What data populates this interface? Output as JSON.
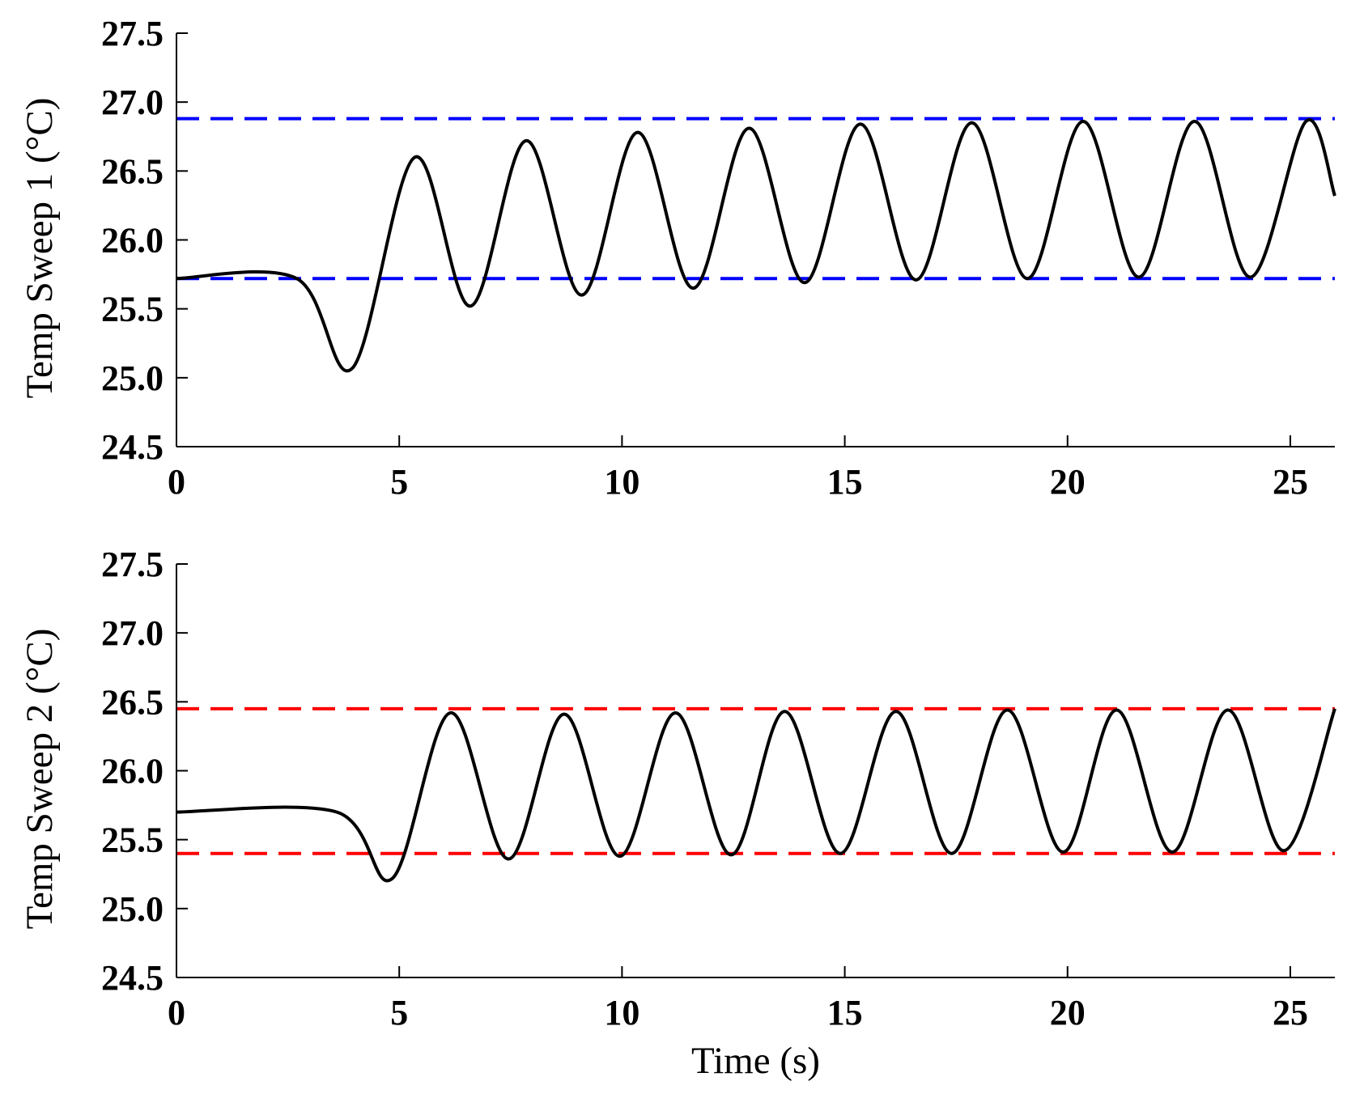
{
  "chart_data": [
    {
      "type": "line",
      "y_label": "Temp Sweep 1 (°C)",
      "x": [
        0,
        2.7,
        3.95,
        5.35,
        6.6,
        7.85,
        9.1,
        10.35,
        11.6,
        12.85,
        14.1,
        15.35,
        16.6,
        17.85,
        19.1,
        20.35,
        21.6,
        22.85,
        24.1,
        25.35,
        26
      ],
      "series": [
        {
          "color": "#000000",
          "values": [
            25.72,
            25.72,
            25.07,
            26.6,
            25.52,
            26.72,
            25.6,
            26.78,
            25.65,
            26.81,
            25.69,
            26.84,
            25.71,
            26.85,
            25.72,
            26.86,
            25.73,
            26.86,
            25.73,
            26.86,
            26.32
          ]
        }
      ],
      "hlines": [
        {
          "value": 26.88,
          "color": "#0000ff"
        },
        {
          "value": 25.72,
          "color": "#0000ff"
        }
      ],
      "xlim": [
        0,
        26
      ],
      "xticks": [
        0,
        5,
        10,
        15,
        20,
        25
      ],
      "ylim": [
        24.5,
        27.5
      ],
      "yticks": [
        24.5,
        {
          "value": 25,
          "label": "25.0"
        },
        25.5,
        {
          "value": 26,
          "label": "26.0"
        },
        26.5,
        {
          "value": 27,
          "label": "27.0"
        },
        27.5
      ]
    },
    {
      "type": "line",
      "y_label": "Temp Sweep 2 (°C)",
      "x_label": "Time (s)",
      "x": [
        0,
        3.6,
        4.85,
        6.15,
        7.45,
        8.7,
        9.95,
        11.2,
        12.45,
        13.65,
        14.9,
        16.15,
        17.4,
        18.65,
        19.9,
        21.1,
        22.35,
        23.6,
        24.85,
        26
      ],
      "series": [
        {
          "color": "#000000",
          "values": [
            25.7,
            25.7,
            25.22,
            26.42,
            25.36,
            26.41,
            25.38,
            26.42,
            25.39,
            26.43,
            25.4,
            26.43,
            25.4,
            26.44,
            25.41,
            26.44,
            25.41,
            26.44,
            25.42,
            26.45
          ]
        }
      ],
      "hlines": [
        {
          "value": 26.45,
          "color": "#ff0000"
        },
        {
          "value": 25.4,
          "color": "#ff0000"
        }
      ],
      "xlim": [
        0,
        26
      ],
      "xticks": [
        0,
        5,
        10,
        15,
        20,
        25
      ],
      "ylim": [
        24.5,
        27.5
      ],
      "yticks": [
        24.5,
        {
          "value": 25,
          "label": "25.0"
        },
        25.5,
        {
          "value": 26,
          "label": "26.0"
        },
        26.5,
        {
          "value": 27,
          "label": "27.0"
        },
        27.5
      ]
    }
  ]
}
